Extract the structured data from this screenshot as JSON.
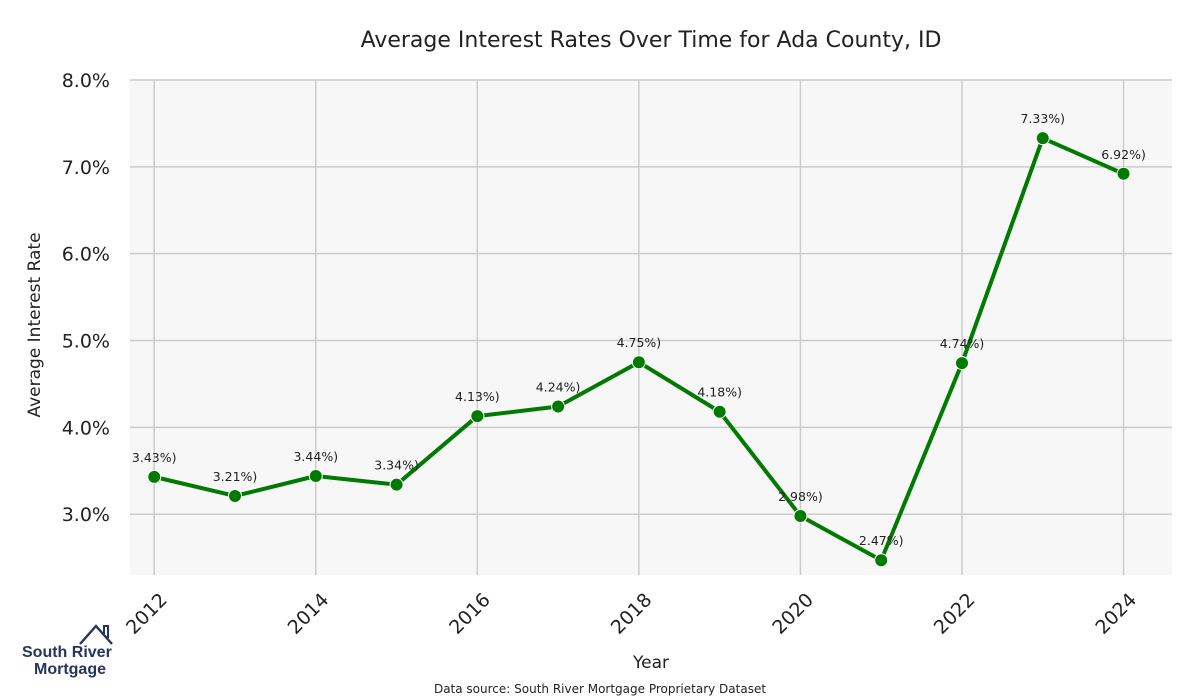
{
  "chart_data": {
    "type": "line",
    "title": "Average Interest Rates Over Time for Ada County, ID",
    "xlabel": "Year",
    "ylabel": "Average Interest Rate",
    "x": [
      2012,
      2013,
      2014,
      2015,
      2016,
      2017,
      2018,
      2019,
      2020,
      2021,
      2022,
      2023,
      2024
    ],
    "values": [
      3.43,
      3.21,
      3.44,
      3.34,
      4.13,
      4.24,
      4.75,
      4.18,
      2.98,
      2.47,
      4.74,
      7.33,
      6.92
    ],
    "data_labels": [
      "3.43%)",
      "3.21%)",
      "3.44%)",
      "3.34%)",
      "4.13%)",
      "4.24%)",
      "4.75%)",
      "4.18%)",
      "2.98%)",
      "2.47%)",
      "4.74%)",
      "7.33%)",
      "6.92%)"
    ],
    "xticks": [
      2012,
      2014,
      2016,
      2018,
      2020,
      2022,
      2024
    ],
    "xtick_labels": [
      "2012",
      "2014",
      "2016",
      "2018",
      "2020",
      "2022",
      "2024"
    ],
    "yticks": [
      3,
      4,
      5,
      6,
      7,
      8
    ],
    "ytick_labels": [
      "3.0%",
      "4.0%",
      "5.0%",
      "6.0%",
      "7.0%",
      "8.0%"
    ],
    "xlim": [
      2011.7,
      2024.6
    ],
    "ylim": [
      2.3,
      8.0
    ],
    "grid": true,
    "line_color": "#007a00",
    "plot_background": "#f7f7f7",
    "grid_color": "#cccccc"
  },
  "source_note": "Data source: South River Mortgage Proprietary Dataset",
  "logo": {
    "line1": "South River",
    "line2": "Mortgage",
    "color": "#27345f",
    "icon": "house-roof-icon"
  }
}
